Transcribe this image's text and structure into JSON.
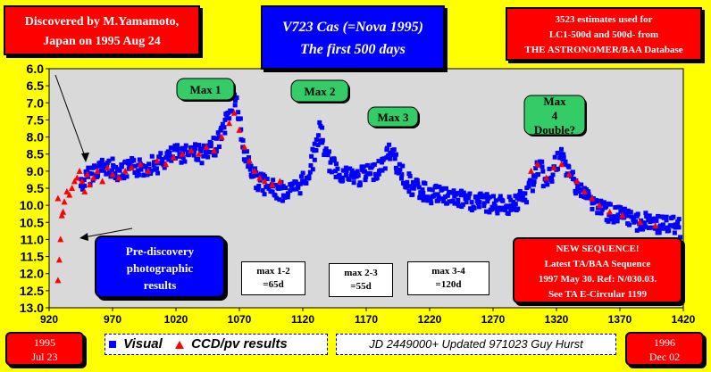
{
  "header": {
    "title_line1": "V723 Cas  (=Nova 1995)",
    "title_line2": "The first 500 days"
  },
  "discovery_box": {
    "line1": "Discovered by M.Yamamoto,",
    "line2": "Japan on 1995 Aug 24"
  },
  "estimates_box": {
    "line1": "3523 estimates used for",
    "line2": "LC1-500d and 500d- from",
    "line3": "THE ASTRONOMER/BAA Database"
  },
  "prediscovery_box": {
    "line1": "Pre-discovery",
    "line2": "photographic",
    "line3": "results"
  },
  "sequence_box": {
    "line1": "NEW SEQUENCE!",
    "line2": "Latest TA/BAA Sequence",
    "line3": "1997 May 30. Ref: N/030.03.",
    "line4": "See TA E-Circular 1199"
  },
  "interval_boxes": [
    {
      "line1": "max 1-2",
      "line2": "=65d"
    },
    {
      "line1": "max 2-3",
      "line2": "=55d"
    },
    {
      "line1": "max 3-4",
      "line2": "=120d"
    }
  ],
  "footer": {
    "start_line1": "1995",
    "start_line2": "Jul 23",
    "end_line1": "1996",
    "end_line2": "Dec 02",
    "legend_visual": "Visual",
    "legend_ccd": "CCD/pv results",
    "jd_note": "JD 2449000+ Updated 971023 Guy Hurst"
  },
  "colors": {
    "background": "#ffff00",
    "plot_area": "#d9d9d9",
    "visual_series": "#0000ff",
    "ccd_series": "#ff0000",
    "max_label_bg": "#33cc66"
  },
  "chart_data": {
    "type": "scatter",
    "title": "V723 Cas  (=Nova 1995) The first 500 days",
    "xlabel": "",
    "ylabel": "",
    "xlim": [
      920,
      1420
    ],
    "ylim": [
      13.0,
      6.0
    ],
    "y_inverted": true,
    "x_ticks": [
      "920",
      "970",
      "1020",
      "1070",
      "1120",
      "1170",
      "1220",
      "1270",
      "1320",
      "1370",
      "1420"
    ],
    "y_ticks": [
      "6.0",
      "6.5",
      "7.0",
      "7.5",
      "8.0",
      "8.5",
      "9.0",
      "9.5",
      "10.0",
      "10.5",
      "11.0",
      "11.5",
      "12.0",
      "12.5",
      "13.0"
    ],
    "grid": false,
    "annotations": [
      "Max 1",
      "Max 2",
      "Max 3",
      "Max 4 Double?"
    ],
    "legend": "bottom",
    "series": [
      {
        "name": "Visual",
        "marker": "square",
        "color": "#0000ff",
        "trend": [
          [
            945,
            9.4
          ],
          [
            950,
            9.2
          ],
          [
            955,
            9.0
          ],
          [
            960,
            8.9
          ],
          [
            965,
            8.9
          ],
          [
            970,
            8.9
          ],
          [
            975,
            9.0
          ],
          [
            980,
            9.0
          ],
          [
            985,
            8.9
          ],
          [
            990,
            8.9
          ],
          [
            995,
            8.9
          ],
          [
            1000,
            8.8
          ],
          [
            1005,
            8.8
          ],
          [
            1010,
            8.7
          ],
          [
            1015,
            8.6
          ],
          [
            1020,
            8.5
          ],
          [
            1025,
            8.5
          ],
          [
            1030,
            8.4
          ],
          [
            1035,
            8.4
          ],
          [
            1040,
            8.5
          ],
          [
            1045,
            8.5
          ],
          [
            1050,
            8.3
          ],
          [
            1055,
            8.0
          ],
          [
            1058,
            7.7
          ],
          [
            1061,
            7.4
          ],
          [
            1064,
            7.1
          ],
          [
            1066,
            6.8
          ],
          [
            1068,
            7.0
          ],
          [
            1070,
            7.5
          ],
          [
            1072,
            8.1
          ],
          [
            1075,
            8.6
          ],
          [
            1080,
            9.0
          ],
          [
            1085,
            9.3
          ],
          [
            1090,
            9.4
          ],
          [
            1095,
            9.5
          ],
          [
            1100,
            9.6
          ],
          [
            1105,
            9.6
          ],
          [
            1110,
            9.6
          ],
          [
            1115,
            9.5
          ],
          [
            1120,
            9.3
          ],
          [
            1125,
            9.0
          ],
          [
            1128,
            8.6
          ],
          [
            1131,
            8.2
          ],
          [
            1133,
            7.8
          ],
          [
            1135,
            8.0
          ],
          [
            1138,
            8.5
          ],
          [
            1142,
            8.8
          ],
          [
            1148,
            9.0
          ],
          [
            1155,
            9.1
          ],
          [
            1162,
            9.2
          ],
          [
            1170,
            9.1
          ],
          [
            1176,
            9.0
          ],
          [
            1180,
            8.9
          ],
          [
            1185,
            8.7
          ],
          [
            1188,
            8.4
          ],
          [
            1190,
            8.4
          ],
          [
            1193,
            8.7
          ],
          [
            1197,
            9.0
          ],
          [
            1202,
            9.3
          ],
          [
            1208,
            9.5
          ],
          [
            1215,
            9.6
          ],
          [
            1222,
            9.7
          ],
          [
            1230,
            9.7
          ],
          [
            1240,
            9.8
          ],
          [
            1250,
            9.9
          ],
          [
            1260,
            9.9
          ],
          [
            1270,
            10.0
          ],
          [
            1280,
            10.0
          ],
          [
            1290,
            9.9
          ],
          [
            1297,
            9.7
          ],
          [
            1302,
            9.2
          ],
          [
            1305,
            8.9
          ],
          [
            1308,
            9.0
          ],
          [
            1312,
            9.4
          ],
          [
            1316,
            9.1
          ],
          [
            1320,
            8.8
          ],
          [
            1324,
            8.6
          ],
          [
            1328,
            8.9
          ],
          [
            1332,
            9.2
          ],
          [
            1338,
            9.5
          ],
          [
            1345,
            9.8
          ],
          [
            1352,
            10.0
          ],
          [
            1360,
            10.2
          ],
          [
            1368,
            10.3
          ],
          [
            1376,
            10.4
          ],
          [
            1385,
            10.5
          ],
          [
            1395,
            10.5
          ],
          [
            1405,
            10.6
          ],
          [
            1413,
            10.6
          ],
          [
            1418,
            10.7
          ]
        ]
      },
      {
        "name": "CCD/pv results",
        "marker": "triangle",
        "color": "#ff0000",
        "points": [
          [
            927,
            12.2
          ],
          [
            928,
            11.6
          ],
          [
            929,
            11.0
          ],
          [
            930,
            10.3
          ],
          [
            927,
            9.8
          ],
          [
            932,
            9.9
          ],
          [
            934,
            9.6
          ],
          [
            931,
            10.2
          ],
          [
            936,
            9.7
          ],
          [
            938,
            9.5
          ],
          [
            940,
            9.3
          ],
          [
            942,
            9.2
          ],
          [
            944,
            9.0
          ],
          [
            946,
            9.3
          ],
          [
            948,
            9.6
          ],
          [
            950,
            9.1
          ],
          [
            952,
            9.4
          ],
          [
            955,
            9.2
          ],
          [
            958,
            9.0
          ],
          [
            962,
            9.3
          ],
          [
            966,
            8.9
          ],
          [
            970,
            9.1
          ],
          [
            975,
            9.2
          ],
          [
            980,
            9.0
          ],
          [
            985,
            8.9
          ],
          [
            992,
            8.8
          ],
          [
            998,
            9.0
          ],
          [
            1005,
            8.7
          ],
          [
            1012,
            8.8
          ],
          [
            1018,
            8.6
          ],
          [
            1025,
            8.5
          ],
          [
            1032,
            8.4
          ],
          [
            1038,
            8.5
          ],
          [
            1044,
            8.3
          ],
          [
            1050,
            8.4
          ],
          [
            1056,
            8.0
          ],
          [
            1062,
            7.6
          ],
          [
            1066,
            7.3
          ],
          [
            1070,
            7.8
          ],
          [
            1074,
            8.3
          ],
          [
            1078,
            8.7
          ],
          [
            1082,
            9.0
          ],
          [
            1086,
            9.2
          ],
          [
            1090,
            9.3
          ],
          [
            1096,
            9.4
          ],
          [
            1102,
            9.3
          ],
          [
            1300,
            9.0
          ],
          [
            1305,
            8.8
          ],
          [
            1312,
            9.2
          ],
          [
            1318,
            8.9
          ],
          [
            1324,
            8.8
          ],
          [
            1330,
            9.1
          ],
          [
            1336,
            9.3
          ],
          [
            1342,
            9.6
          ],
          [
            1348,
            9.8
          ],
          [
            1354,
            10.0
          ],
          [
            1362,
            10.2
          ],
          [
            1372,
            10.3
          ],
          [
            1386,
            10.5
          ],
          [
            1398,
            10.6
          ]
        ]
      }
    ]
  }
}
